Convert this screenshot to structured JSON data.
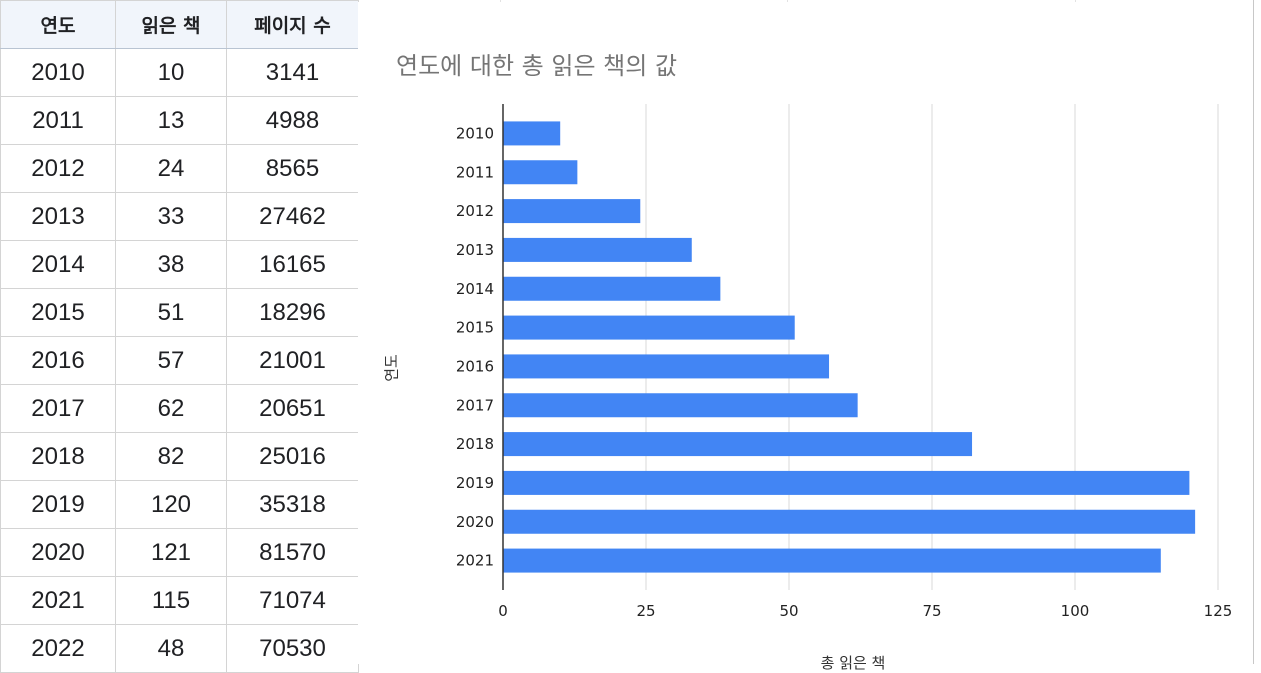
{
  "table": {
    "headers": [
      "연도",
      "읽은 책",
      "페이지 수"
    ],
    "rows": [
      [
        "2010",
        "10",
        "3141"
      ],
      [
        "2011",
        "13",
        "4988"
      ],
      [
        "2012",
        "24",
        "8565"
      ],
      [
        "2013",
        "33",
        "27462"
      ],
      [
        "2014",
        "38",
        "16165"
      ],
      [
        "2015",
        "51",
        "18296"
      ],
      [
        "2016",
        "57",
        "21001"
      ],
      [
        "2017",
        "62",
        "20651"
      ],
      [
        "2018",
        "82",
        "25016"
      ],
      [
        "2019",
        "120",
        "35318"
      ],
      [
        "2020",
        "121",
        "81570"
      ],
      [
        "2021",
        "115",
        "71074"
      ],
      [
        "2022",
        "48",
        "70530"
      ]
    ]
  },
  "chart_data": {
    "type": "bar",
    "orientation": "horizontal",
    "title": "연도에 대한 총 읽은 책의 값",
    "ylabel": "연도",
    "xlabel": "총 읽은 책",
    "categories": [
      "2010",
      "2011",
      "2012",
      "2013",
      "2014",
      "2015",
      "2016",
      "2017",
      "2018",
      "2019",
      "2020",
      "2021"
    ],
    "series": [
      {
        "values": [
          10,
          13,
          24,
          33,
          38,
          51,
          57,
          62,
          82,
          120,
          121,
          115
        ]
      }
    ],
    "xlim": [
      0,
      125
    ],
    "xticks": [
      "0",
      "25",
      "50",
      "75",
      "100",
      "125"
    ],
    "grid": true,
    "bar_color": "#4285f4"
  }
}
